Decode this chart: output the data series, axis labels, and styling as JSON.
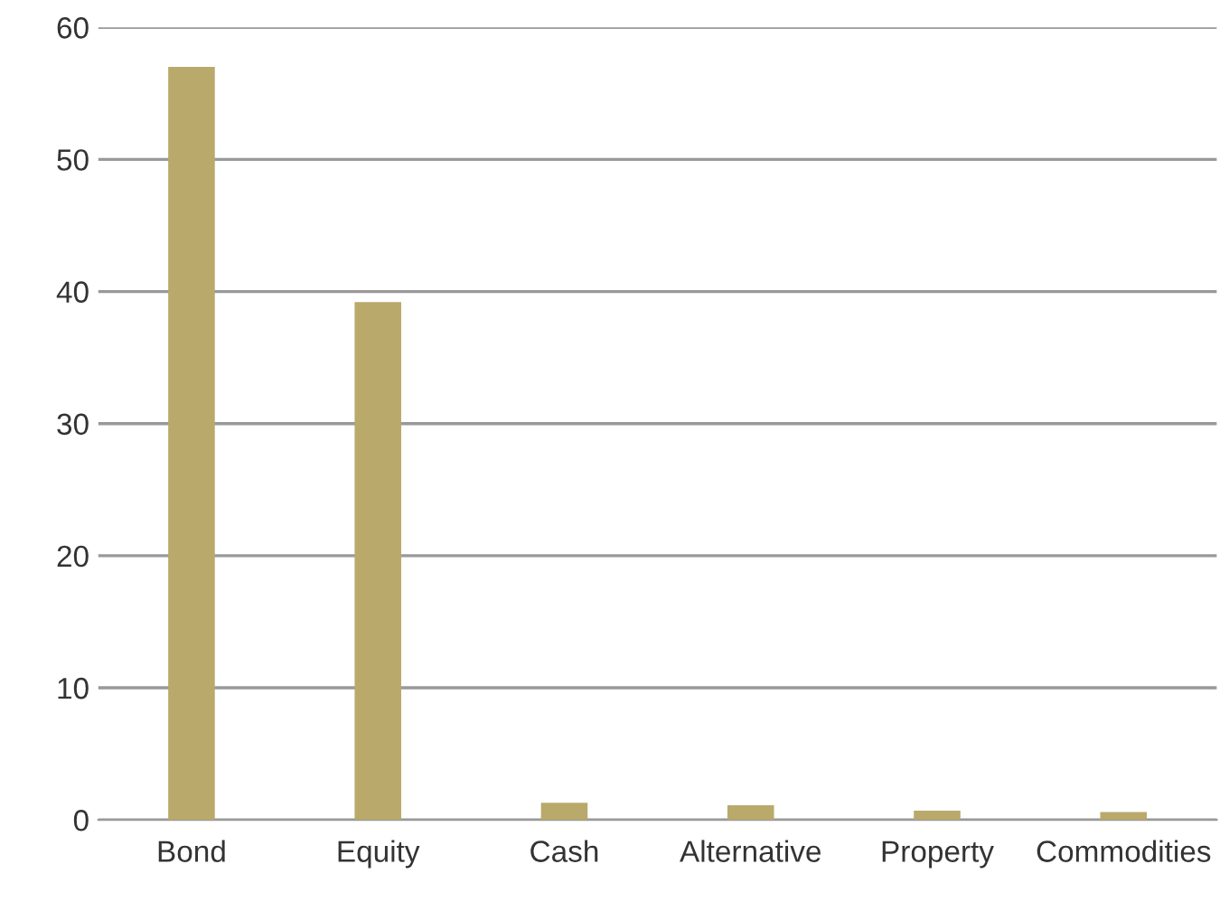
{
  "chart_data": {
    "type": "bar",
    "categories": [
      "Bond",
      "Equity",
      "Cash",
      "Alternative",
      "Property",
      "Commodities"
    ],
    "series": [
      {
        "color": "#b9a96b",
        "values": [
          57.0,
          39.2,
          1.3,
          1.1,
          0.7,
          0.6
        ]
      }
    ],
    "ylim": [
      0,
      60
    ],
    "yticks": [
      0,
      10,
      20,
      30,
      40,
      50,
      60
    ],
    "grid": "y"
  }
}
